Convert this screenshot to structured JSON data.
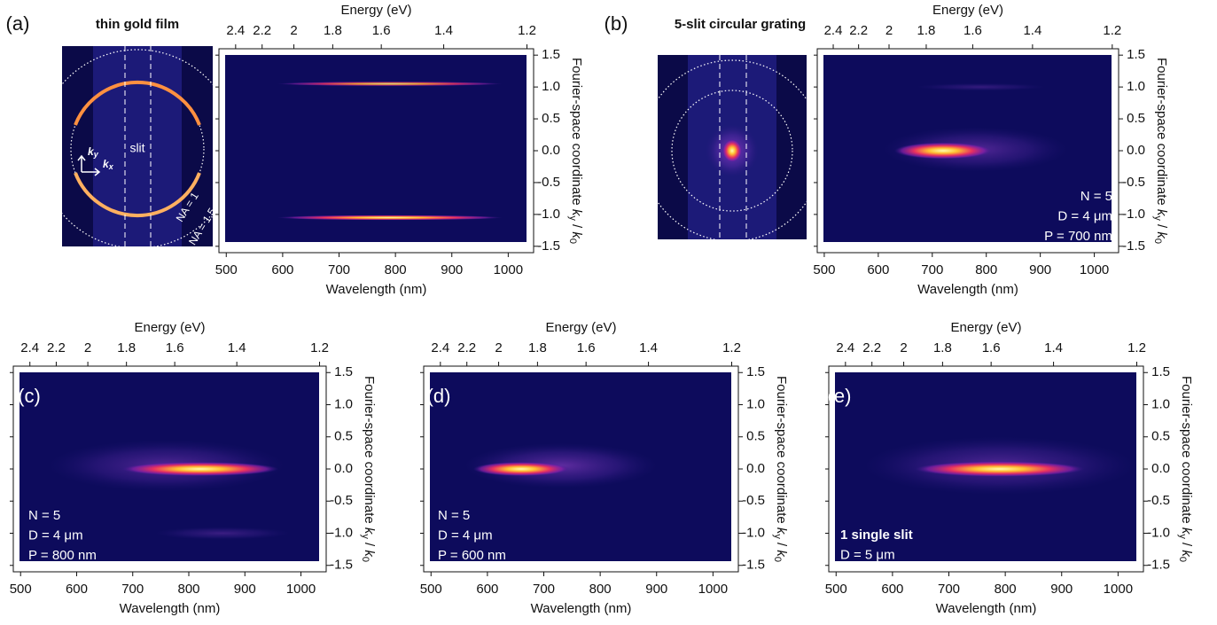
{
  "chart_data": [
    {
      "type": "heatmap",
      "panel_label": "(a)",
      "title": "thin gold film",
      "xlabel": "Wavelength (nm)",
      "x2label": "Energy (eV)",
      "ylabel": {
        "text": "Fourier-space coordinate ",
        "var1": "k",
        "sub1": "y",
        "sep": " / ",
        "var2": "k",
        "sub2": "0"
      },
      "xlim": [
        487,
        1045
      ],
      "xticks": [
        500,
        600,
        700,
        800,
        900,
        1000
      ],
      "x2ticks": [
        2.4,
        2.2,
        2,
        1.8,
        1.6,
        1.4,
        1.2
      ],
      "ylim": [
        -1.6,
        1.6
      ],
      "yticks": [
        1.5,
        {
          "value": 1,
          "label": "1.0"
        },
        0.5,
        {
          "value": 0,
          "label": "0.0"
        },
        -0.5,
        {
          "value": -1,
          "label": "-1.0"
        },
        -1.5
      ],
      "annotations": [],
      "inset": {
        "slit": "slit",
        "na1": "NA = 1",
        "na2": "NA = 1.5",
        "ky": [
          "k",
          "y"
        ],
        "kx": [
          "k",
          "x"
        ]
      }
    },
    {
      "type": "heatmap",
      "panel_label": "(b)",
      "title": "5-slit circular grating",
      "xlabel": "Wavelength (nm)",
      "x2label": "Energy (eV)",
      "ylabel": {
        "text": "Fourier-space coordinate ",
        "var1": "k",
        "sub1": "y",
        "sep": " / ",
        "var2": "k",
        "sub2": "0"
      },
      "xlim": [
        487,
        1045
      ],
      "xticks": [
        500,
        600,
        700,
        800,
        900,
        1000
      ],
      "x2ticks": [
        2.4,
        2.2,
        2,
        1.8,
        1.6,
        1.4,
        1.2
      ],
      "ylim": [
        -1.6,
        1.6
      ],
      "yticks": [
        1.5,
        {
          "value": 1,
          "label": "1.0"
        },
        0.5,
        {
          "value": 0,
          "label": "0.0"
        },
        -0.5,
        {
          "value": -1,
          "label": "-1.0"
        },
        -1.5
      ],
      "annotations": [
        "N = 5",
        "D = 4 μm",
        "P = 700 nm"
      ]
    },
    {
      "type": "heatmap",
      "panel_label": "(c)",
      "xlabel": "Wavelength (nm)",
      "x2label": "Energy (eV)",
      "ylabel": {
        "text": "Fourier-space coordinate ",
        "var1": "k",
        "sub1": "y",
        "sep": " / ",
        "var2": "k",
        "sub2": "0"
      },
      "xlim": [
        487,
        1045
      ],
      "xticks": [
        500,
        600,
        700,
        800,
        900,
        1000
      ],
      "x2ticks": [
        2.4,
        2.2,
        2,
        1.8,
        1.6,
        1.4,
        1.2
      ],
      "ylim": [
        -1.6,
        1.6
      ],
      "yticks": [
        1.5,
        {
          "value": 1,
          "label": "1.0"
        },
        0.5,
        {
          "value": 0,
          "label": "0.0"
        },
        -0.5,
        {
          "value": -1,
          "label": "-1.0"
        },
        -1.5
      ],
      "annotations": [
        "N = 5",
        "D = 4 μm",
        "P = 800 nm"
      ]
    },
    {
      "type": "heatmap",
      "panel_label": "(d)",
      "xlabel": "Wavelength (nm)",
      "x2label": "Energy (eV)",
      "ylabel": {
        "text": "Fourier-space coordinate ",
        "var1": "k",
        "sub1": "y",
        "sep": " / ",
        "var2": "k",
        "sub2": "0"
      },
      "xlim": [
        487,
        1045
      ],
      "xticks": [
        500,
        600,
        700,
        800,
        900,
        1000
      ],
      "x2ticks": [
        2.4,
        2.2,
        2,
        1.8,
        1.6,
        1.4,
        1.2
      ],
      "ylim": [
        -1.6,
        1.6
      ],
      "yticks": [
        1.5,
        {
          "value": 1,
          "label": "1.0"
        },
        0.5,
        {
          "value": 0,
          "label": "0.0"
        },
        -0.5,
        {
          "value": -1,
          "label": "-1.0"
        },
        -1.5
      ],
      "annotations": [
        "N = 5",
        "D = 4 μm",
        "P = 600 nm"
      ]
    },
    {
      "type": "heatmap",
      "panel_label": "(e)",
      "xlabel": "Wavelength (nm)",
      "x2label": "Energy (eV)",
      "ylabel": {
        "text": "Fourier-space coordinate ",
        "var1": "k",
        "sub1": "y",
        "sep": " / ",
        "var2": "k",
        "sub2": "0"
      },
      "xlim": [
        487,
        1045
      ],
      "xticks": [
        500,
        600,
        700,
        800,
        900,
        1000
      ],
      "x2ticks": [
        2.4,
        2.2,
        2,
        1.8,
        1.6,
        1.4,
        1.2
      ],
      "ylim": [
        -1.6,
        1.6
      ],
      "yticks": [
        1.5,
        {
          "value": 1,
          "label": "1.0"
        },
        0.5,
        {
          "value": 0,
          "label": "0.0"
        },
        -0.5,
        {
          "value": -1,
          "label": "-1.0"
        },
        -1.5
      ],
      "annotations": [
        "1 single slit",
        "D = 5 μm"
      ]
    }
  ]
}
